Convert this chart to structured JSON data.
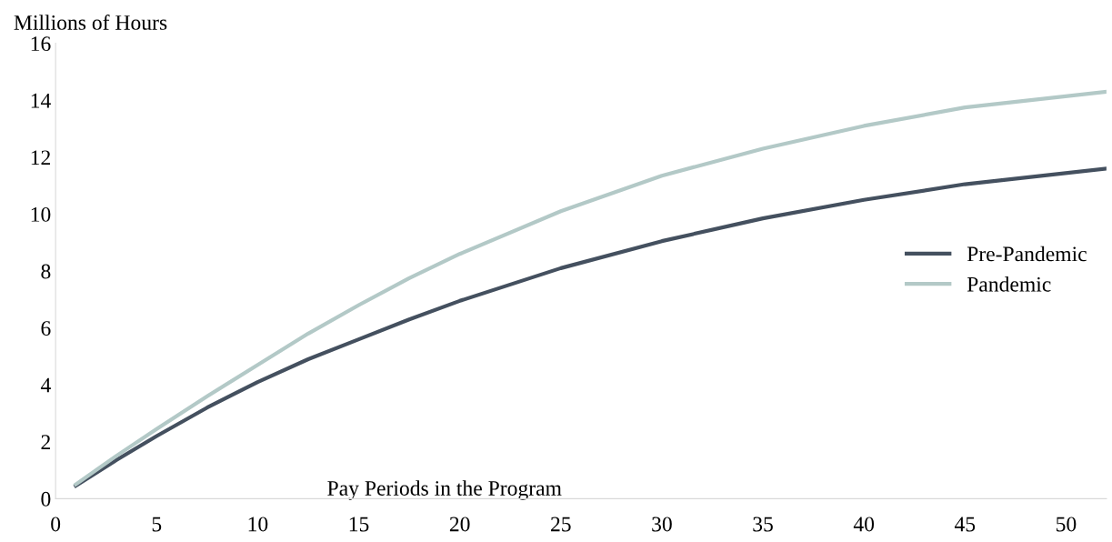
{
  "chart_data": {
    "type": "line",
    "ylabel": "Millions of Hours",
    "xlabel": "Pay Periods in the Program",
    "xlim": [
      0,
      52
    ],
    "xticks": [
      0,
      5,
      10,
      15,
      20,
      25,
      30,
      35,
      40,
      45,
      50
    ],
    "ylim": [
      0,
      16
    ],
    "yticks": [
      0,
      2,
      4,
      6,
      8,
      10,
      12,
      14,
      16
    ],
    "grid": false,
    "legend": "right",
    "marker": "none",
    "line_style": "solid",
    "series": [
      {
        "name": "Pre-Pandemic",
        "color": "#44505f",
        "x": [
          1,
          3,
          5,
          7.5,
          10,
          12.5,
          15,
          17.5,
          20,
          25,
          30,
          35,
          40,
          45,
          52
        ],
        "values": [
          0.45,
          1.35,
          2.2,
          3.2,
          4.1,
          4.9,
          5.6,
          6.3,
          6.95,
          8.1,
          9.05,
          9.85,
          10.5,
          11.05,
          11.6
        ]
      },
      {
        "name": "Pandemic",
        "color": "#b3c9c7",
        "x": [
          1,
          3,
          5,
          7.5,
          10,
          12.5,
          15,
          17.5,
          20,
          25,
          30,
          35,
          40,
          45,
          52
        ],
        "values": [
          0.5,
          1.5,
          2.45,
          3.6,
          4.7,
          5.8,
          6.8,
          7.75,
          8.6,
          10.1,
          11.35,
          12.3,
          13.1,
          13.75,
          14.3
        ]
      }
    ]
  }
}
